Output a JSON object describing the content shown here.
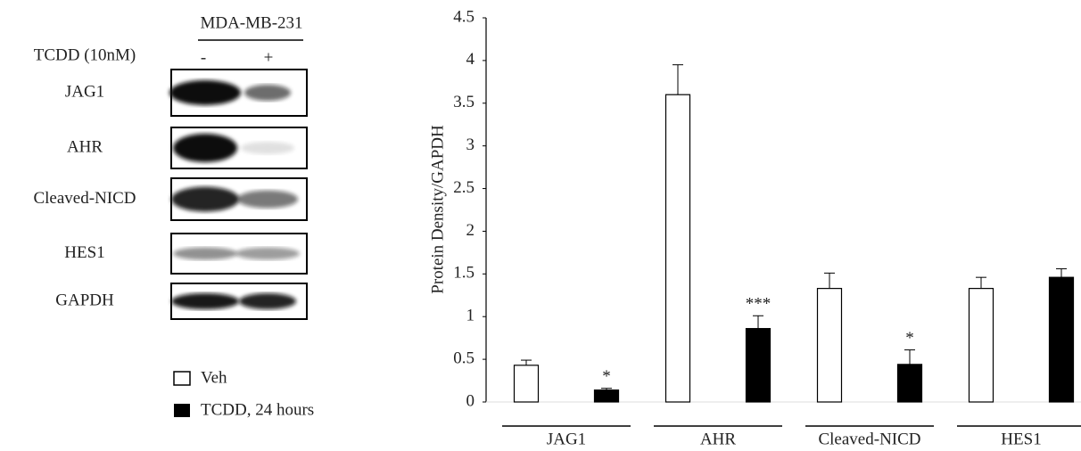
{
  "blot": {
    "cell_line": "MDA-MB-231",
    "treatment": "TCDD (10nM)",
    "lanes": [
      "-",
      "+"
    ],
    "rows": [
      "JAG1",
      "AHR",
      "Cleaved-NICD",
      "HES1",
      "GAPDH"
    ]
  },
  "chart_data": {
    "type": "bar",
    "y_label": "Protein Density/GAPDH",
    "categories": [
      "JAG1",
      "AHR",
      "Cleaved-NICD",
      "HES1"
    ],
    "series": [
      {
        "name": "Veh",
        "color": "#ffffff",
        "values": [
          0.43,
          3.6,
          1.33,
          1.33
        ],
        "errors": [
          0.06,
          0.35,
          0.18,
          0.13
        ]
      },
      {
        "name": "TCDD,  24 hours",
        "color": "#000000",
        "values": [
          0.14,
          0.86,
          0.44,
          1.46
        ],
        "errors": [
          0.02,
          0.15,
          0.17,
          0.1
        ],
        "significance": [
          "*",
          "***",
          "*",
          null
        ]
      }
    ],
    "ylim": [
      0,
      4.5
    ],
    "yticks": [
      0,
      0.5,
      1,
      1.5,
      2,
      2.5,
      3,
      3.5,
      4,
      4.5
    ]
  }
}
